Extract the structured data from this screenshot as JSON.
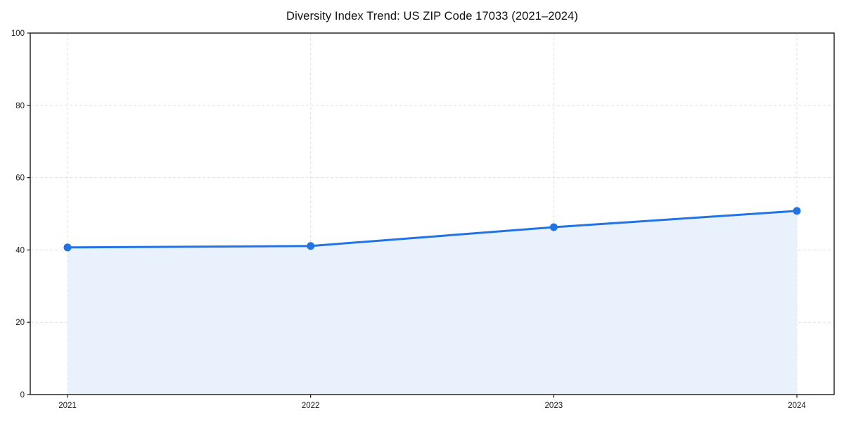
{
  "page": {
    "background_color": "#ffffff"
  },
  "chart_data": {
    "type": "area",
    "title": "Diversity Index Trend: US ZIP Code 17033 (2021–2024)",
    "categories": [
      "2021",
      "2022",
      "2023",
      "2024"
    ],
    "series": [
      {
        "name": "Diversity Index",
        "values": [
          40.7,
          41.1,
          46.3,
          50.8
        ]
      }
    ],
    "xlabel": "",
    "ylabel": "",
    "ylim": [
      0,
      100
    ],
    "yticks": [
      0,
      20,
      40,
      60,
      80,
      100
    ],
    "grid": true,
    "grid_style": "dashed",
    "legend": "none",
    "line_color": "#2273e6",
    "fill_color": "#e9f1fc",
    "grid_color": "#e0e0e0",
    "axis_color": "#1a1a1a",
    "text_color": "#1a1a1a",
    "marker": "circle"
  }
}
